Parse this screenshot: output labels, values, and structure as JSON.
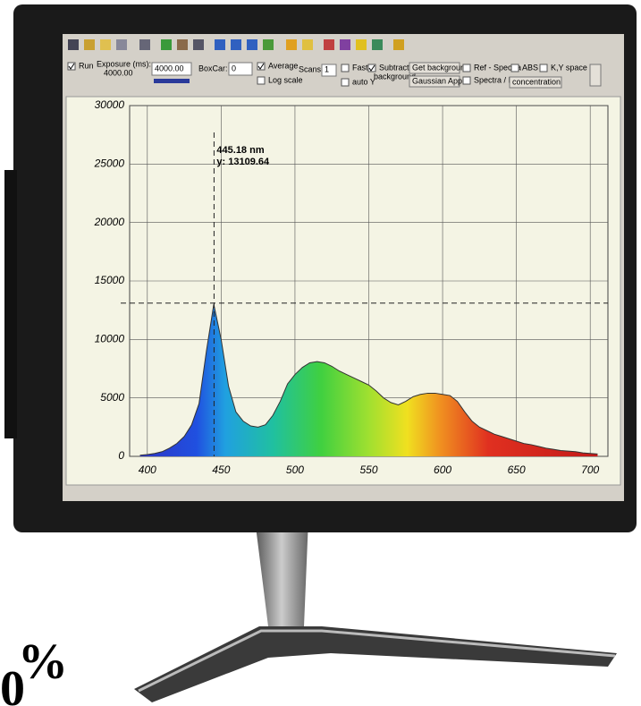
{
  "toolbar": {
    "run": "Run",
    "exposure_label": "Exposure (ms):",
    "exposure_value": "4000.00",
    "exposure_input": "4000.00",
    "boxcar_label": "BoxCar:",
    "boxcar_value": "0",
    "average": "Average",
    "log_scale": "Log scale",
    "scans_label": "Scans:",
    "scans_value": "1",
    "fast": "Fast",
    "auto_y": "auto Y",
    "subtract": "Subtract",
    "background": "background",
    "get_background": "Get background",
    "gaussian": "Gaussian Appr.",
    "ref_spectra": "Ref - Spectra",
    "spectra_ref": "Spectra / Ref",
    "abs": "ABS",
    "ky_space": "K,Y space",
    "concentration": "concentration"
  },
  "chart_data": {
    "type": "area",
    "color": "#333333",
    "x": [
      395,
      400,
      405,
      410,
      415,
      420,
      425,
      430,
      435,
      440,
      445,
      450,
      455,
      460,
      465,
      470,
      475,
      480,
      485,
      490,
      495,
      500,
      505,
      510,
      515,
      520,
      525,
      530,
      535,
      540,
      545,
      550,
      555,
      560,
      565,
      570,
      575,
      580,
      585,
      590,
      595,
      600,
      605,
      610,
      615,
      620,
      625,
      630,
      635,
      640,
      645,
      650,
      655,
      660,
      665,
      670,
      675,
      680,
      685,
      690,
      695,
      700,
      705
    ],
    "values": [
      100,
      150,
      250,
      400,
      700,
      1100,
      1700,
      2700,
      4500,
      9000,
      13000,
      10000,
      6000,
      3800,
      3000,
      2600,
      2500,
      2700,
      3500,
      4700,
      6200,
      7000,
      7600,
      8000,
      8100,
      8000,
      7700,
      7300,
      7000,
      6700,
      6400,
      6100,
      5600,
      5000,
      4600,
      4400,
      4700,
      5100,
      5300,
      5400,
      5400,
      5300,
      5200,
      4700,
      3800,
      3000,
      2500,
      2200,
      1900,
      1700,
      1500,
      1300,
      1100,
      1000,
      850,
      700,
      600,
      500,
      450,
      400,
      300,
      250,
      200
    ],
    "xlim": [
      388,
      712
    ],
    "ylim": [
      0,
      30000
    ],
    "xticks": [
      400,
      450,
      500,
      550,
      600,
      650,
      700
    ],
    "yticks": [
      0,
      5000,
      10000,
      15000,
      20000,
      25000,
      30000
    ],
    "grid": true,
    "cursor": {
      "x": 445.18,
      "y": 13109.64,
      "x_label": "445.18 nm",
      "y_label": "y: 13109.64"
    }
  },
  "corner_text": [
    "%",
    "0"
  ]
}
